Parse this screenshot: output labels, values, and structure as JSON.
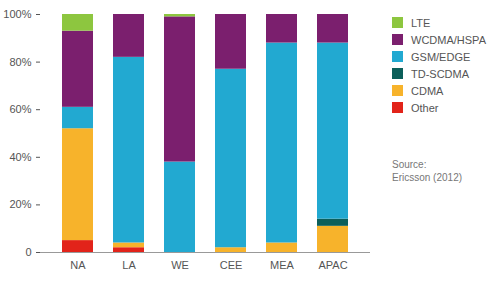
{
  "chart_data": {
    "type": "bar",
    "stacked": true,
    "legend": "right",
    "source": "Source:\nEricsson (2012)",
    "categories": [
      "NA",
      "LA",
      "WE",
      "CEE",
      "MEA",
      "APAC"
    ],
    "series": [
      {
        "name": "LTE",
        "color": "#8dc63f",
        "values": [
          7,
          0,
          1,
          0,
          0,
          0
        ]
      },
      {
        "name": "WCDMA/HSPA",
        "color": "#7b1f6e",
        "values": [
          32,
          18,
          61,
          23,
          12,
          12
        ]
      },
      {
        "name": "GSM/EDGE",
        "color": "#22a9d1",
        "values": [
          9,
          78,
          38,
          75,
          84,
          74
        ]
      },
      {
        "name": "TD-SCDMA",
        "color": "#0c5f5a",
        "values": [
          0,
          0,
          0,
          0,
          0,
          3
        ]
      },
      {
        "name": "CDMA",
        "color": "#f7b32b",
        "values": [
          47,
          2,
          0,
          2,
          4,
          11
        ]
      },
      {
        "name": "Other",
        "color": "#e2231a",
        "values": [
          5,
          2,
          0,
          0,
          0,
          0
        ]
      }
    ],
    "ylim": [
      0,
      100
    ],
    "yticks": [
      {
        "value": 0,
        "label": "0"
      },
      {
        "value": 20,
        "label": "20%"
      },
      {
        "value": 40,
        "label": "40%"
      },
      {
        "value": 60,
        "label": "60%"
      },
      {
        "value": 80,
        "label": "80%"
      },
      {
        "value": 100,
        "label": "100%"
      }
    ],
    "grid": false
  }
}
